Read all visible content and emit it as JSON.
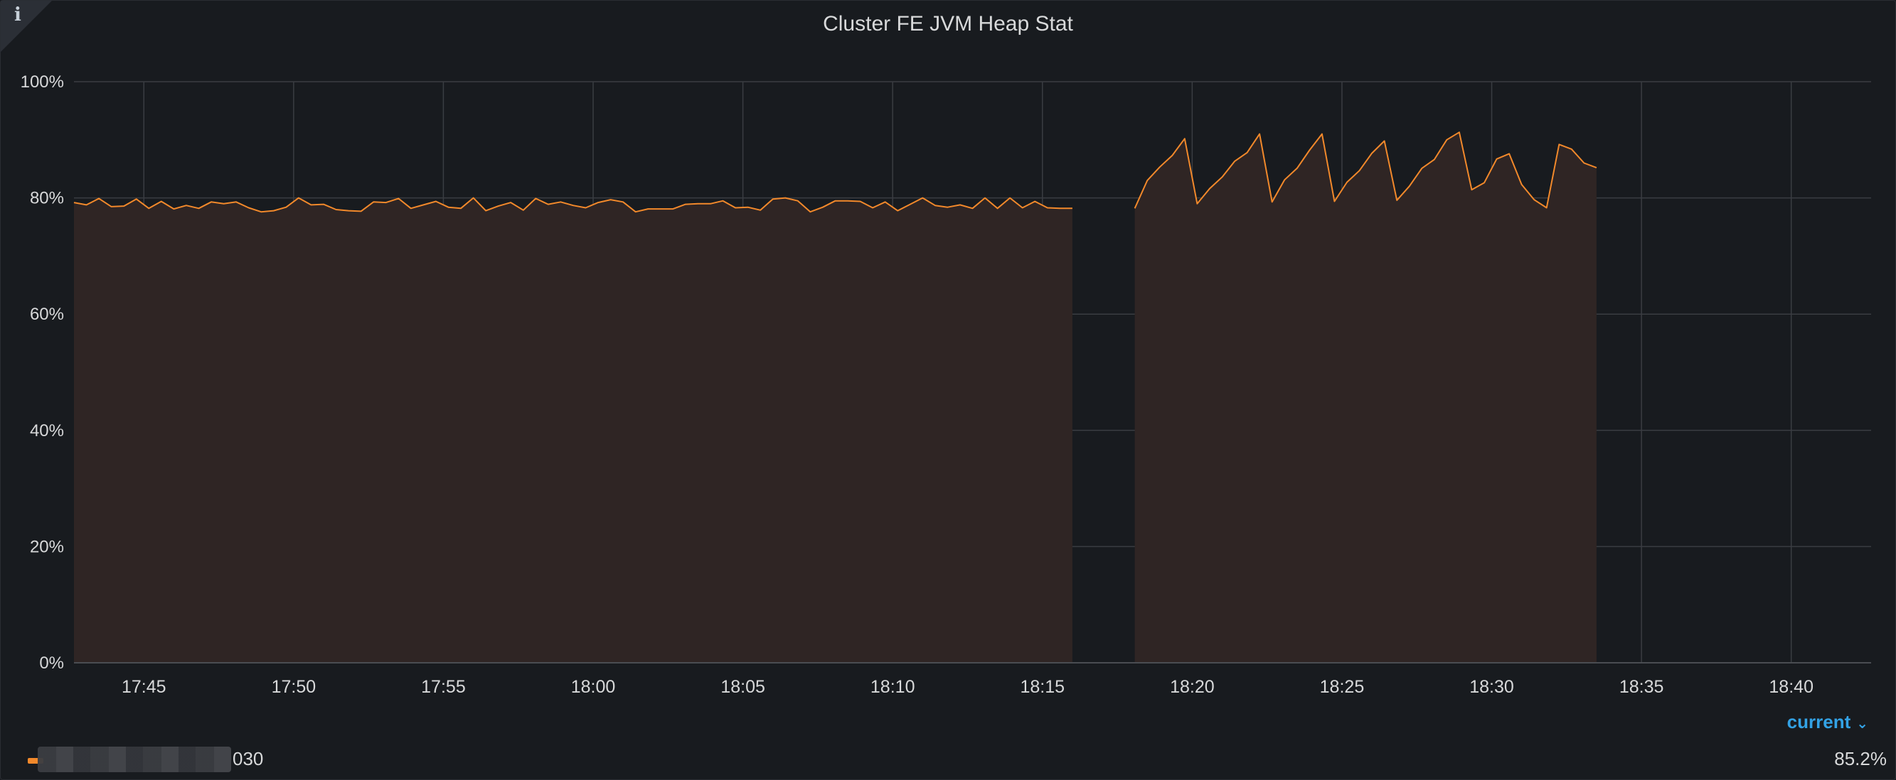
{
  "panel": {
    "title": "Cluster FE JVM Heap Stat",
    "info_icon_glyph": "i"
  },
  "legend": {
    "header_label": "current",
    "series_name_visible": "030",
    "current_value": "85.2%"
  },
  "colors": {
    "series_line": "#f2892b",
    "series_fill": "#2f2524",
    "background": "#181b1f",
    "grid": "#3a3d42",
    "legend_header": "#33a2e5"
  },
  "chart_data": {
    "type": "area",
    "title": "Cluster FE JVM Heap Stat",
    "xlabel": "",
    "ylabel": "",
    "ylim": [
      0,
      100
    ],
    "y_unit": "%",
    "y_ticks": [
      "0%",
      "20%",
      "40%",
      "60%",
      "80%",
      "100%"
    ],
    "x_ticks": [
      "17:45",
      "17:50",
      "17:55",
      "18:00",
      "18:05",
      "18:10",
      "18:15",
      "18:20",
      "18:25",
      "18:30",
      "18:35",
      "18:40"
    ],
    "x_range": [
      "17:42:40",
      "18:42:40"
    ],
    "grid": true,
    "legend_placement": "bottom",
    "series": [
      {
        "points": [
          [
            "17:42:40",
            79.2
          ],
          [
            "17:43:05",
            78.8
          ],
          [
            "17:43:30",
            79.9
          ],
          [
            "17:43:55",
            78.5
          ],
          [
            "17:44:20",
            78.6
          ],
          [
            "17:44:45",
            79.8
          ],
          [
            "17:45:10",
            78.2
          ],
          [
            "17:45:35",
            79.4
          ],
          [
            "17:46:00",
            78.1
          ],
          [
            "17:46:25",
            78.7
          ],
          [
            "17:46:50",
            78.2
          ],
          [
            "17:47:15",
            79.3
          ],
          [
            "17:47:40",
            79.0
          ],
          [
            "17:48:05",
            79.3
          ],
          [
            "17:48:30",
            78.3
          ],
          [
            "17:48:55",
            77.6
          ],
          [
            "17:49:20",
            77.8
          ],
          [
            "17:49:45",
            78.4
          ],
          [
            "17:50:10",
            80.0
          ],
          [
            "17:50:35",
            78.8
          ],
          [
            "17:51:00",
            78.9
          ],
          [
            "17:51:25",
            78.0
          ],
          [
            "17:51:50",
            77.8
          ],
          [
            "17:52:15",
            77.7
          ],
          [
            "17:52:40",
            79.3
          ],
          [
            "17:53:05",
            79.2
          ],
          [
            "17:53:30",
            79.9
          ],
          [
            "17:53:55",
            78.2
          ],
          [
            "17:54:20",
            78.8
          ],
          [
            "17:54:45",
            79.4
          ],
          [
            "17:55:10",
            78.4
          ],
          [
            "17:55:35",
            78.2
          ],
          [
            "17:56:00",
            80.0
          ],
          [
            "17:56:25",
            77.8
          ],
          [
            "17:56:50",
            78.6
          ],
          [
            "17:57:15",
            79.2
          ],
          [
            "17:57:40",
            77.9
          ],
          [
            "17:58:05",
            79.9
          ],
          [
            "17:58:30",
            78.9
          ],
          [
            "17:58:55",
            79.3
          ],
          [
            "17:59:20",
            78.7
          ],
          [
            "17:59:45",
            78.3
          ],
          [
            "18:00:10",
            79.2
          ],
          [
            "18:00:35",
            79.7
          ],
          [
            "18:01:00",
            79.3
          ],
          [
            "18:01:25",
            77.6
          ],
          [
            "18:01:50",
            78.1
          ],
          [
            "18:02:15",
            78.1
          ],
          [
            "18:02:40",
            78.1
          ],
          [
            "18:03:05",
            78.9
          ],
          [
            "18:03:30",
            79.0
          ],
          [
            "18:03:55",
            79.0
          ],
          [
            "18:04:20",
            79.5
          ],
          [
            "18:04:45",
            78.3
          ],
          [
            "18:05:10",
            78.4
          ],
          [
            "18:05:35",
            77.9
          ],
          [
            "18:06:00",
            79.8
          ],
          [
            "18:06:25",
            80.0
          ],
          [
            "18:06:50",
            79.5
          ],
          [
            "18:07:15",
            77.6
          ],
          [
            "18:07:40",
            78.4
          ],
          [
            "18:08:05",
            79.5
          ],
          [
            "18:08:30",
            79.5
          ],
          [
            "18:08:55",
            79.4
          ],
          [
            "18:09:20",
            78.3
          ],
          [
            "18:09:45",
            79.3
          ],
          [
            "18:10:10",
            77.8
          ],
          [
            "18:10:35",
            78.9
          ],
          [
            "18:11:00",
            80.0
          ],
          [
            "18:11:25",
            78.7
          ],
          [
            "18:11:50",
            78.4
          ],
          [
            "18:12:15",
            78.8
          ],
          [
            "18:12:40",
            78.2
          ],
          [
            "18:13:05",
            80.0
          ],
          [
            "18:13:30",
            78.2
          ],
          [
            "18:13:55",
            80.0
          ],
          [
            "18:14:20",
            78.3
          ],
          [
            "18:14:45",
            79.4
          ],
          [
            "18:15:10",
            78.3
          ],
          [
            "18:15:35",
            78.2
          ],
          [
            "18:16:00",
            78.2
          ],
          null,
          [
            "18:18:05",
            78.2
          ],
          [
            "18:18:30",
            83.0
          ],
          [
            "18:18:55",
            85.3
          ],
          [
            "18:19:20",
            87.3
          ],
          [
            "18:19:45",
            90.2
          ],
          [
            "18:20:10",
            79.0
          ],
          [
            "18:20:35",
            81.6
          ],
          [
            "18:21:00",
            83.6
          ],
          [
            "18:21:25",
            86.3
          ],
          [
            "18:21:50",
            87.8
          ],
          [
            "18:22:15",
            91.0
          ],
          [
            "18:22:40",
            79.3
          ],
          [
            "18:23:05",
            83.1
          ],
          [
            "18:23:30",
            85.1
          ],
          [
            "18:23:55",
            88.2
          ],
          [
            "18:24:20",
            91.0
          ],
          [
            "18:24:45",
            79.4
          ],
          [
            "18:25:10",
            82.7
          ],
          [
            "18:25:35",
            84.7
          ],
          [
            "18:26:00",
            87.7
          ],
          [
            "18:26:25",
            89.8
          ],
          [
            "18:26:50",
            79.6
          ],
          [
            "18:27:15",
            82.0
          ],
          [
            "18:27:40",
            85.1
          ],
          [
            "18:28:05",
            86.6
          ],
          [
            "18:28:30",
            90.0
          ],
          [
            "18:28:55",
            91.3
          ],
          [
            "18:29:20",
            81.4
          ],
          [
            "18:29:45",
            82.6
          ],
          [
            "18:30:10",
            86.7
          ],
          [
            "18:30:35",
            87.6
          ],
          [
            "18:31:00",
            82.3
          ],
          [
            "18:31:25",
            79.7
          ],
          [
            "18:31:50",
            78.3
          ],
          [
            "18:32:15",
            89.2
          ],
          [
            "18:32:40",
            88.4
          ],
          [
            "18:33:05",
            86.0
          ],
          [
            "18:33:30",
            85.2
          ]
        ]
      }
    ]
  }
}
